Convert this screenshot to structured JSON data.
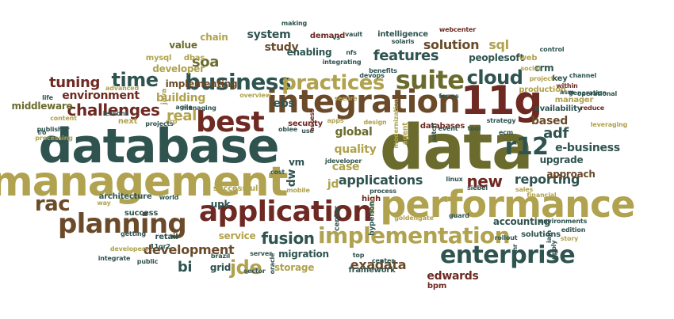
{
  "palette": {
    "olive": "#6b6b2e",
    "khaki": "#b0a24e",
    "maroon": "#6e2a22",
    "teal": "#2f5450",
    "brown": "#6b4a2a"
  },
  "words": [
    {
      "text": "data",
      "color": "olive",
      "vertical": false
    },
    {
      "text": "database",
      "color": "teal",
      "vertical": false
    },
    {
      "text": "management",
      "color": "khaki",
      "vertical": false
    },
    {
      "text": "integration",
      "color": "brown",
      "vertical": false
    },
    {
      "text": "11g",
      "color": "maroon",
      "vertical": false
    },
    {
      "text": "performance",
      "color": "khaki",
      "vertical": false
    },
    {
      "text": "best",
      "color": "maroon",
      "vertical": false
    },
    {
      "text": "application",
      "color": "maroon",
      "vertical": false
    },
    {
      "text": "planning",
      "color": "brown",
      "vertical": false
    },
    {
      "text": "implementation",
      "color": "khaki",
      "vertical": false
    },
    {
      "text": "enterprise",
      "color": "teal",
      "vertical": false
    },
    {
      "text": "business",
      "color": "teal",
      "vertical": false
    },
    {
      "text": "suite",
      "color": "olive",
      "vertical": false
    },
    {
      "text": "practices",
      "color": "khaki",
      "vertical": false
    },
    {
      "text": "cloud",
      "color": "teal",
      "vertical": false
    },
    {
      "text": "rac",
      "color": "brown",
      "vertical": false
    },
    {
      "text": "r12",
      "color": "teal",
      "vertical": false
    },
    {
      "text": "jde",
      "color": "khaki",
      "vertical": false
    },
    {
      "text": "fusion",
      "color": "teal",
      "vertical": false
    },
    {
      "text": "challenges",
      "color": "maroon",
      "vertical": false
    },
    {
      "text": "time",
      "color": "teal",
      "vertical": false
    },
    {
      "text": "features",
      "color": "teal",
      "vertical": false
    },
    {
      "text": "soa",
      "color": "olive",
      "vertical": false
    },
    {
      "text": "tuning",
      "color": "maroon",
      "vertical": false
    },
    {
      "text": "environment",
      "color": "maroon",
      "vertical": false
    },
    {
      "text": "development",
      "color": "brown",
      "vertical": false
    },
    {
      "text": "applications",
      "color": "teal",
      "vertical": false
    },
    {
      "text": "new",
      "color": "maroon",
      "vertical": false
    },
    {
      "text": "reporting",
      "color": "teal",
      "vertical": false
    },
    {
      "text": "exadata",
      "color": "brown",
      "vertical": false
    },
    {
      "text": "adf",
      "color": "teal",
      "vertical": false
    },
    {
      "text": "real",
      "color": "khaki",
      "vertical": false
    },
    {
      "text": "solution",
      "color": "brown",
      "vertical": false
    },
    {
      "text": "study",
      "color": "brown",
      "vertical": false
    },
    {
      "text": "global",
      "color": "olive",
      "vertical": false
    },
    {
      "text": "upgrade",
      "color": "teal",
      "vertical": false
    },
    {
      "text": "based",
      "color": "brown",
      "vertical": false
    },
    {
      "text": "e-business",
      "color": "teal",
      "vertical": false
    },
    {
      "text": "edwards",
      "color": "maroon",
      "vertical": false
    },
    {
      "text": "migration",
      "color": "teal",
      "vertical": false
    },
    {
      "text": "bi",
      "color": "teal",
      "vertical": false
    },
    {
      "text": "vm",
      "color": "teal",
      "vertical": false
    },
    {
      "text": "quality",
      "color": "khaki",
      "vertical": false
    },
    {
      "text": "case",
      "color": "khaki",
      "vertical": false
    },
    {
      "text": "jd",
      "color": "khaki",
      "vertical": false
    },
    {
      "text": "system",
      "color": "teal",
      "vertical": false
    },
    {
      "text": "building",
      "color": "khaki",
      "vertical": false
    },
    {
      "text": "storage",
      "color": "khaki",
      "vertical": false
    },
    {
      "text": "sql",
      "color": "khaki",
      "vertical": false
    },
    {
      "text": "enabling",
      "color": "teal",
      "vertical": false
    },
    {
      "text": "ebs",
      "color": "teal",
      "vertical": false
    },
    {
      "text": "value",
      "color": "olive",
      "vertical": false
    },
    {
      "text": "implementing",
      "color": "brown",
      "vertical": false
    },
    {
      "text": "peoplesoft",
      "color": "teal",
      "vertical": false
    },
    {
      "text": "upk",
      "color": "teal",
      "vertical": false
    },
    {
      "text": "chain",
      "color": "khaki",
      "vertical": false
    },
    {
      "text": "developer",
      "color": "khaki",
      "vertical": false
    },
    {
      "text": "mysql",
      "color": "khaki",
      "vertical": false
    },
    {
      "text": "dbas",
      "color": "khaki",
      "vertical": false
    },
    {
      "text": "approach",
      "color": "brown",
      "vertical": false
    },
    {
      "text": "accounting",
      "color": "teal",
      "vertical": false
    },
    {
      "text": "success",
      "color": "teal",
      "vertical": false
    },
    {
      "text": "grid",
      "color": "teal",
      "vertical": false
    },
    {
      "text": "framework",
      "color": "teal",
      "vertical": false
    },
    {
      "text": "bpm",
      "color": "maroon",
      "vertical": false
    },
    {
      "text": "high",
      "color": "maroon",
      "vertical": false
    },
    {
      "text": "crm",
      "color": "teal",
      "vertical": false
    },
    {
      "text": "web",
      "color": "khaki",
      "vertical": false
    },
    {
      "text": "middleware",
      "color": "olive",
      "vertical": false
    },
    {
      "text": "service",
      "color": "khaki",
      "vertical": false
    },
    {
      "text": "security",
      "color": "maroon",
      "vertical": false
    },
    {
      "text": "databases",
      "color": "maroon",
      "vertical": false
    },
    {
      "text": "availability",
      "color": "teal",
      "vertical": false
    },
    {
      "text": "manager",
      "color": "khaki",
      "vertical": false
    },
    {
      "text": "solutions",
      "color": "teal",
      "vertical": false
    },
    {
      "text": "successful",
      "color": "khaki",
      "vertical": false
    },
    {
      "text": "demand",
      "color": "maroon",
      "vertical": false
    },
    {
      "text": "intelligence",
      "color": "teal",
      "vertical": false
    },
    {
      "text": "making",
      "color": "teal",
      "vertical": false
    },
    {
      "text": "vault",
      "color": "teal",
      "vertical": false
    },
    {
      "text": "webcenter",
      "color": "maroon",
      "vertical": false
    },
    {
      "text": "solaris",
      "color": "teal",
      "vertical": false
    },
    {
      "text": "social",
      "color": "khaki",
      "vertical": false
    },
    {
      "text": "control",
      "color": "teal",
      "vertical": false
    },
    {
      "text": "project",
      "color": "khaki",
      "vertical": false
    },
    {
      "text": "key",
      "color": "teal",
      "vertical": false
    },
    {
      "text": "production",
      "color": "khaki",
      "vertical": false
    },
    {
      "text": "reduce",
      "color": "maroon",
      "vertical": false
    },
    {
      "text": "channel",
      "color": "teal",
      "vertical": false
    },
    {
      "text": "within",
      "color": "maroon",
      "vertical": false
    },
    {
      "text": "asm",
      "color": "teal",
      "vertical": false
    },
    {
      "text": "generation",
      "color": "teal",
      "vertical": false
    },
    {
      "text": "operational",
      "color": "teal",
      "vertical": false
    },
    {
      "text": "leveraging",
      "color": "khaki",
      "vertical": false
    },
    {
      "text": "strategy",
      "color": "teal",
      "vertical": false
    },
    {
      "text": "benefits",
      "color": "teal",
      "vertical": false
    },
    {
      "text": "integrating",
      "color": "teal",
      "vertical": false
    },
    {
      "text": "devops",
      "color": "teal",
      "vertical": false
    },
    {
      "text": "secure",
      "color": "khaki",
      "vertical": false
    },
    {
      "text": "forms",
      "color": "teal",
      "vertical": false
    },
    {
      "text": "advanced",
      "color": "khaki",
      "vertical": false
    },
    {
      "text": "life",
      "color": "teal",
      "vertical": false
    },
    {
      "text": "agile",
      "color": "teal",
      "vertical": false
    },
    {
      "text": "erp",
      "color": "khaki",
      "vertical": false
    },
    {
      "text": "managing",
      "color": "teal",
      "vertical": false
    },
    {
      "text": "overview",
      "color": "khaki",
      "vertical": false
    },
    {
      "text": "architecture",
      "color": "teal",
      "vertical": false
    },
    {
      "text": "world",
      "color": "teal",
      "vertical": false
    },
    {
      "text": "way",
      "color": "khaki",
      "vertical": false
    },
    {
      "text": "lessons",
      "color": "teal",
      "vertical": false
    },
    {
      "text": "next",
      "color": "khaki",
      "vertical": false
    },
    {
      "text": "projects",
      "color": "teal",
      "vertical": false
    },
    {
      "text": "content",
      "color": "khaki",
      "vertical": false
    },
    {
      "text": "publisher",
      "color": "teal",
      "vertical": false
    },
    {
      "text": "i/o",
      "color": "teal",
      "vertical": false
    },
    {
      "text": "processing",
      "color": "khaki",
      "vertical": false
    },
    {
      "text": "obiee",
      "color": "teal",
      "vertical": false
    },
    {
      "text": "use",
      "color": "teal",
      "vertical": false
    },
    {
      "text": "apps",
      "color": "khaki",
      "vertical": false
    },
    {
      "text": "cost",
      "color": "teal",
      "vertical": false
    },
    {
      "text": "mobile",
      "color": "khaki",
      "vertical": false
    },
    {
      "text": "design",
      "color": "khaki",
      "vertical": false
    },
    {
      "text": "jdeveloper",
      "color": "teal",
      "vertical": false
    },
    {
      "text": "process",
      "color": "teal",
      "vertical": false
    },
    {
      "text": "linux",
      "color": "teal",
      "vertical": false
    },
    {
      "text": "siebel",
      "color": "teal",
      "vertical": false
    },
    {
      "text": "ecm",
      "color": "teal",
      "vertical": false
    },
    {
      "text": "financial",
      "color": "khaki",
      "vertical": false
    },
    {
      "text": "sales",
      "color": "khaki",
      "vertical": false
    },
    {
      "text": "goldengate",
      "color": "khaki",
      "vertical": false
    },
    {
      "text": "guard",
      "color": "teal",
      "vertical": false
    },
    {
      "text": "environments",
      "color": "teal",
      "vertical": false
    },
    {
      "text": "edition",
      "color": "teal",
      "vertical": false
    },
    {
      "text": "story",
      "color": "khaki",
      "vertical": false
    },
    {
      "text": "rollout",
      "color": "teal",
      "vertical": false
    },
    {
      "text": "center",
      "color": "teal",
      "vertical": false
    },
    {
      "text": "top",
      "color": "teal",
      "vertical": false
    },
    {
      "text": "nfs",
      "color": "teal",
      "vertical": false
    },
    {
      "text": "vs",
      "color": "teal",
      "vertical": false
    },
    {
      "text": "event",
      "color": "teal",
      "vertical": false
    },
    {
      "text": "tool",
      "color": "teal",
      "vertical": false
    },
    {
      "text": "retail",
      "color": "teal",
      "vertical": false
    },
    {
      "text": "11gr2",
      "color": "teal",
      "vertical": false
    },
    {
      "text": "developers",
      "color": "khaki",
      "vertical": false
    },
    {
      "text": "getting",
      "color": "teal",
      "vertical": false
    },
    {
      "text": "integrate",
      "color": "teal",
      "vertical": false
    },
    {
      "text": "public",
      "color": "teal",
      "vertical": false
    },
    {
      "text": "brazil",
      "color": "teal",
      "vertical": false
    },
    {
      "text": "sector",
      "color": "teal",
      "vertical": false
    },
    {
      "text": "server",
      "color": "teal",
      "vertical": false
    },
    {
      "text": "oracle",
      "color": "teal",
      "vertical": true
    },
    {
      "text": "java",
      "color": "khaki",
      "vertical": true
    },
    {
      "text": "dw",
      "color": "teal",
      "vertical": true
    },
    {
      "text": "access",
      "color": "maroon",
      "vertical": true
    },
    {
      "text": "center",
      "color": "teal",
      "vertical": true
    },
    {
      "text": "data",
      "color": "khaki",
      "vertical": true
    },
    {
      "text": "hyperion",
      "color": "teal",
      "vertical": true
    },
    {
      "text": "modernization",
      "color": "khaki",
      "vertical": true
    },
    {
      "text": "patch",
      "color": "teal",
      "vertical": true
    },
    {
      "text": "hr",
      "color": "teal",
      "vertical": true
    },
    {
      "text": "iam",
      "color": "teal",
      "vertical": true
    },
    {
      "text": "supply",
      "color": "teal",
      "vertical": true
    },
    {
      "text": "agent",
      "color": "khaki",
      "vertical": true
    }
  ]
}
